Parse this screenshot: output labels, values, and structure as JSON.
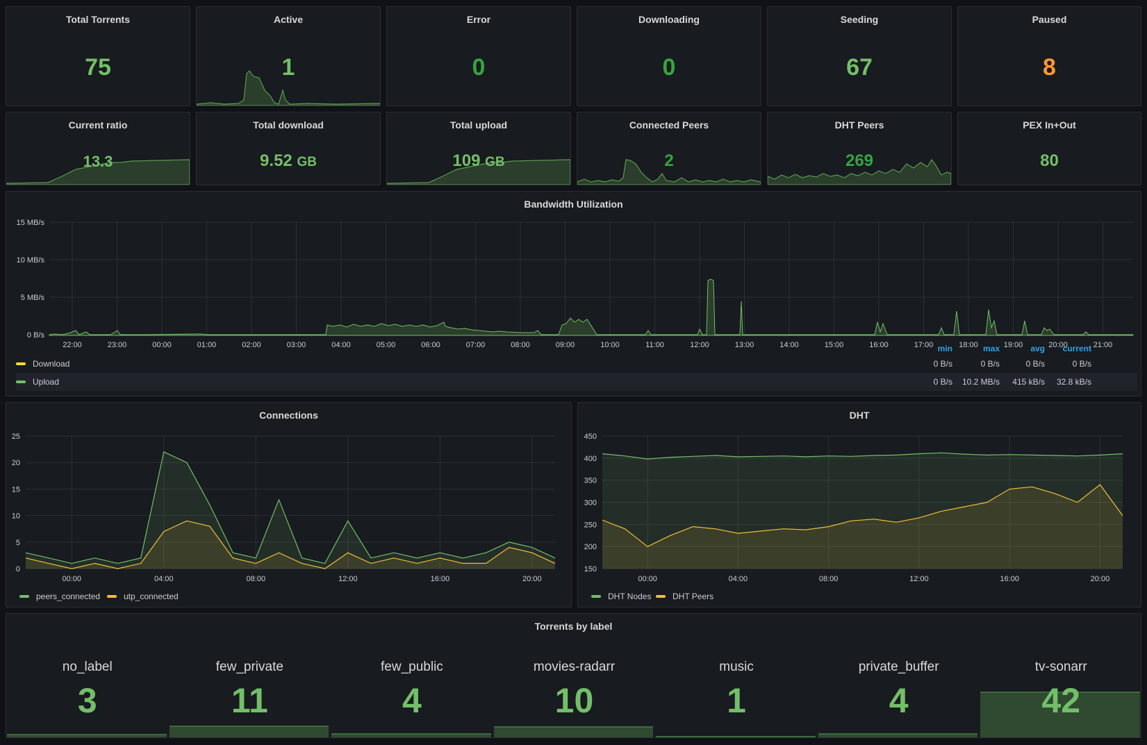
{
  "colors": {
    "green": "#73bf69",
    "dark_green": "#37a43f",
    "orange": "#ff9830",
    "panel_bg": "#181b1f",
    "download": "#fade2a",
    "utp": "#f2c036"
  },
  "stats_top": [
    {
      "title": "Total Torrents",
      "value": "75"
    },
    {
      "title": "Active",
      "value": "1"
    },
    {
      "title": "Error",
      "value": "0"
    },
    {
      "title": "Downloading",
      "value": "0"
    },
    {
      "title": "Seeding",
      "value": "67"
    },
    {
      "title": "Paused",
      "value": "8"
    }
  ],
  "stats_second": [
    {
      "title": "Current ratio",
      "value": "13.3",
      "unit": ""
    },
    {
      "title": "Total download",
      "value": "9.52",
      "unit": "GB"
    },
    {
      "title": "Total upload",
      "value": "109",
      "unit": "GB"
    },
    {
      "title": "Connected Peers",
      "value": "2",
      "unit": ""
    },
    {
      "title": "DHT Peers",
      "value": "269",
      "unit": ""
    },
    {
      "title": "PEX In+Out",
      "value": "80",
      "unit": ""
    }
  ],
  "bandwidth": {
    "title": "Bandwidth Utilization",
    "yticks": [
      "0 B/s",
      "5 MB/s",
      "10 MB/s",
      "15 MB/s"
    ],
    "xticks": [
      "22:00",
      "23:00",
      "00:00",
      "01:00",
      "02:00",
      "03:00",
      "04:00",
      "05:00",
      "06:00",
      "07:00",
      "08:00",
      "09:00",
      "10:00",
      "11:00",
      "12:00",
      "13:00",
      "14:00",
      "15:00",
      "16:00",
      "17:00",
      "18:00",
      "19:00",
      "20:00",
      "21:00"
    ],
    "legend_headers": {
      "min": "min",
      "max": "max",
      "avg": "avg",
      "current": "current"
    },
    "series": [
      {
        "name": "Download",
        "min": "0 B/s",
        "max": "0 B/s",
        "avg": "0 B/s",
        "current": "0 B/s"
      },
      {
        "name": "Upload",
        "min": "0 B/s",
        "max": "10.2 MB/s",
        "avg": "415 kB/s",
        "current": "32.8 kB/s"
      }
    ]
  },
  "chart_data": [
    {
      "type": "line",
      "title": "Connections",
      "x": [
        "22:00",
        "23:00",
        "00:00",
        "01:00",
        "02:00",
        "03:00",
        "04:00",
        "05:00",
        "06:00",
        "07:00",
        "08:00",
        "09:00",
        "10:00",
        "11:00",
        "12:00",
        "13:00",
        "14:00",
        "15:00",
        "16:00",
        "17:00",
        "18:00",
        "19:00",
        "20:00",
        "21:00"
      ],
      "xticks": [
        "00:00",
        "04:00",
        "08:00",
        "12:00",
        "16:00",
        "20:00"
      ],
      "yticks": [
        "0",
        "5",
        "10",
        "15",
        "20",
        "25"
      ],
      "ylim": [
        0,
        25
      ],
      "series": [
        {
          "name": "peers_connected",
          "values": [
            3,
            2,
            1,
            2,
            1,
            2,
            22,
            20,
            12,
            3,
            2,
            13,
            2,
            1,
            9,
            2,
            3,
            2,
            3,
            2,
            3,
            5,
            4,
            2
          ]
        },
        {
          "name": "utp_connected",
          "values": [
            2,
            1,
            0,
            1,
            0,
            1,
            7,
            9,
            8,
            2,
            1,
            3,
            1,
            0,
            3,
            1,
            2,
            1,
            2,
            1,
            1,
            4,
            3,
            1
          ]
        }
      ]
    },
    {
      "type": "line",
      "title": "DHT",
      "x": [
        "22:00",
        "23:00",
        "00:00",
        "01:00",
        "02:00",
        "03:00",
        "04:00",
        "05:00",
        "06:00",
        "07:00",
        "08:00",
        "09:00",
        "10:00",
        "11:00",
        "12:00",
        "13:00",
        "14:00",
        "15:00",
        "16:00",
        "17:00",
        "18:00",
        "19:00",
        "20:00",
        "21:00"
      ],
      "xticks": [
        "00:00",
        "04:00",
        "08:00",
        "12:00",
        "16:00",
        "20:00"
      ],
      "yticks": [
        "150",
        "200",
        "250",
        "300",
        "350",
        "400",
        "450"
      ],
      "ylim": [
        150,
        450
      ],
      "series": [
        {
          "name": "DHT Nodes",
          "values": [
            410,
            405,
            398,
            402,
            404,
            406,
            403,
            404,
            405,
            403,
            405,
            404,
            406,
            407,
            410,
            412,
            409,
            407,
            408,
            407,
            406,
            405,
            407,
            410
          ]
        },
        {
          "name": "DHT Peers",
          "values": [
            260,
            240,
            200,
            225,
            245,
            240,
            230,
            235,
            240,
            238,
            245,
            258,
            262,
            255,
            265,
            280,
            290,
            300,
            330,
            335,
            320,
            300,
            340,
            270
          ]
        }
      ]
    }
  ],
  "labels": {
    "title": "Torrents by label",
    "items": [
      {
        "name": "no_label",
        "value": "3",
        "count": 3
      },
      {
        "name": "few_private",
        "value": "11",
        "count": 11
      },
      {
        "name": "few_public",
        "value": "4",
        "count": 4
      },
      {
        "name": "movies-radarr",
        "value": "10",
        "count": 10
      },
      {
        "name": "music",
        "value": "1",
        "count": 1
      },
      {
        "name": "private_buffer",
        "value": "4",
        "count": 4
      },
      {
        "name": "tv-sonarr",
        "value": "42",
        "count": 42
      }
    ]
  }
}
